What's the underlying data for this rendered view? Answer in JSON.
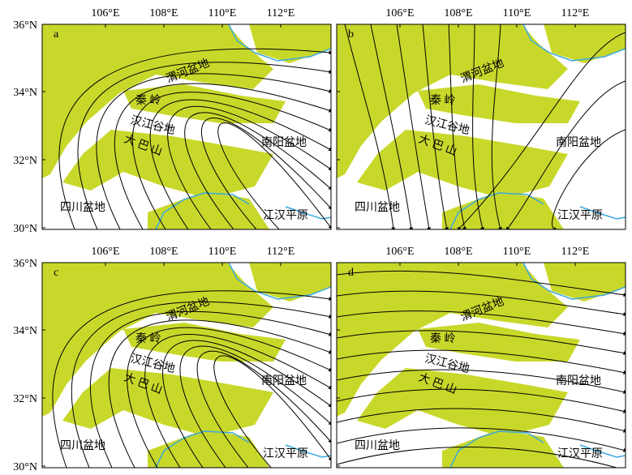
{
  "lon_labels": [
    "106°E",
    "108°E",
    "110°E",
    "112°E"
  ],
  "lat_labels": [
    "36°N",
    "34°N",
    "32°N",
    "30°N"
  ],
  "panels": [
    {
      "label": "a",
      "places": [
        "渭河盆地",
        "秦 岭",
        "汉江谷地",
        "大 巴 山",
        "南阳盆地",
        "四川盆地",
        "江汉平原"
      ]
    },
    {
      "label": "b",
      "places": [
        "渭河盆地",
        "秦 岭",
        "汉江谷地",
        "大 巴 山",
        "南阳盆地",
        "四川盆地",
        "江汉平原"
      ]
    },
    {
      "label": "c",
      "places": [
        "渭河盆地",
        "秦 岭",
        "汉江谷地",
        "大 巴 山",
        "南阳盆地",
        "四川盆地",
        "江汉平原"
      ]
    },
    {
      "label": "d",
      "places": [
        "渭河盆地",
        "秦 岭",
        "汉江谷地",
        "大 巴 山",
        "南阳盆地",
        "四川盆地",
        "江汉平原"
      ]
    }
  ]
}
